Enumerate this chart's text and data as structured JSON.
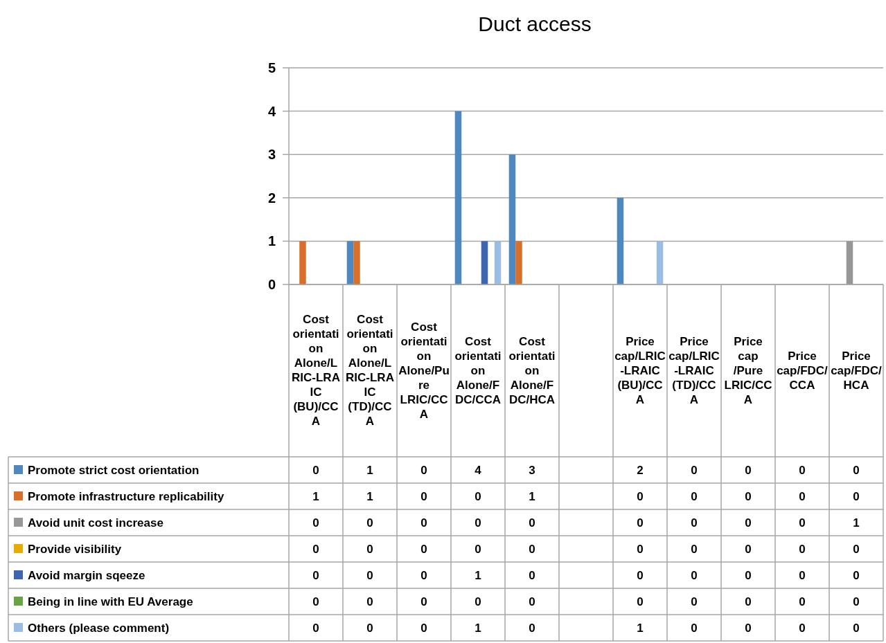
{
  "chart_data": {
    "type": "bar",
    "title": "Duct access",
    "categories": [
      "Cost orientation Alone/LRIC-LRAIC (BU)/CCA",
      "Cost orientation Alone/LRIC-LRAIC (TD)/CCA",
      "Cost orientation Alone/Pure LRIC/CCA",
      "Cost orientation Alone/FDC/CCA",
      "Cost orientation Alone/FDC/HCA",
      null,
      "Price cap/LRIC-LRAIC (BU)/CCA",
      "Price cap/LRIC-LRAIC (TD)/CCA",
      "Price cap /Pure LRIC/CCA",
      "Price cap/FDC/CCA",
      "Price cap/FDC/HCA"
    ],
    "series": [
      {
        "name": "Promote strict cost orientation",
        "color": "#4f87bf",
        "values": [
          0,
          1,
          0,
          4,
          3,
          null,
          2,
          0,
          0,
          0,
          0
        ]
      },
      {
        "name": "Promote infrastructure replicability",
        "color": "#d8702b",
        "values": [
          1,
          1,
          0,
          0,
          1,
          null,
          0,
          0,
          0,
          0,
          0
        ]
      },
      {
        "name": "Avoid unit cost increase",
        "color": "#979797",
        "values": [
          0,
          0,
          0,
          0,
          0,
          null,
          0,
          0,
          0,
          0,
          1
        ]
      },
      {
        "name": "Provide visibility",
        "color": "#e6ac00",
        "values": [
          0,
          0,
          0,
          0,
          0,
          null,
          0,
          0,
          0,
          0,
          0
        ]
      },
      {
        "name": "Avoid margin sqeeze",
        "color": "#3d66b0",
        "values": [
          0,
          0,
          0,
          1,
          0,
          null,
          0,
          0,
          0,
          0,
          0
        ]
      },
      {
        "name": "Being in line with EU Average",
        "color": "#68a443",
        "values": [
          0,
          0,
          0,
          0,
          0,
          null,
          0,
          0,
          0,
          0,
          0
        ]
      },
      {
        "name": "Others (please comment)",
        "color": "#9bbde3",
        "values": [
          0,
          0,
          0,
          1,
          0,
          null,
          1,
          0,
          0,
          0,
          0
        ]
      }
    ],
    "ylim": [
      0,
      5
    ],
    "yticks": [
      0,
      1,
      2,
      3,
      4,
      5
    ],
    "grid": "y",
    "legend": "bottom",
    "data_labels": true
  }
}
